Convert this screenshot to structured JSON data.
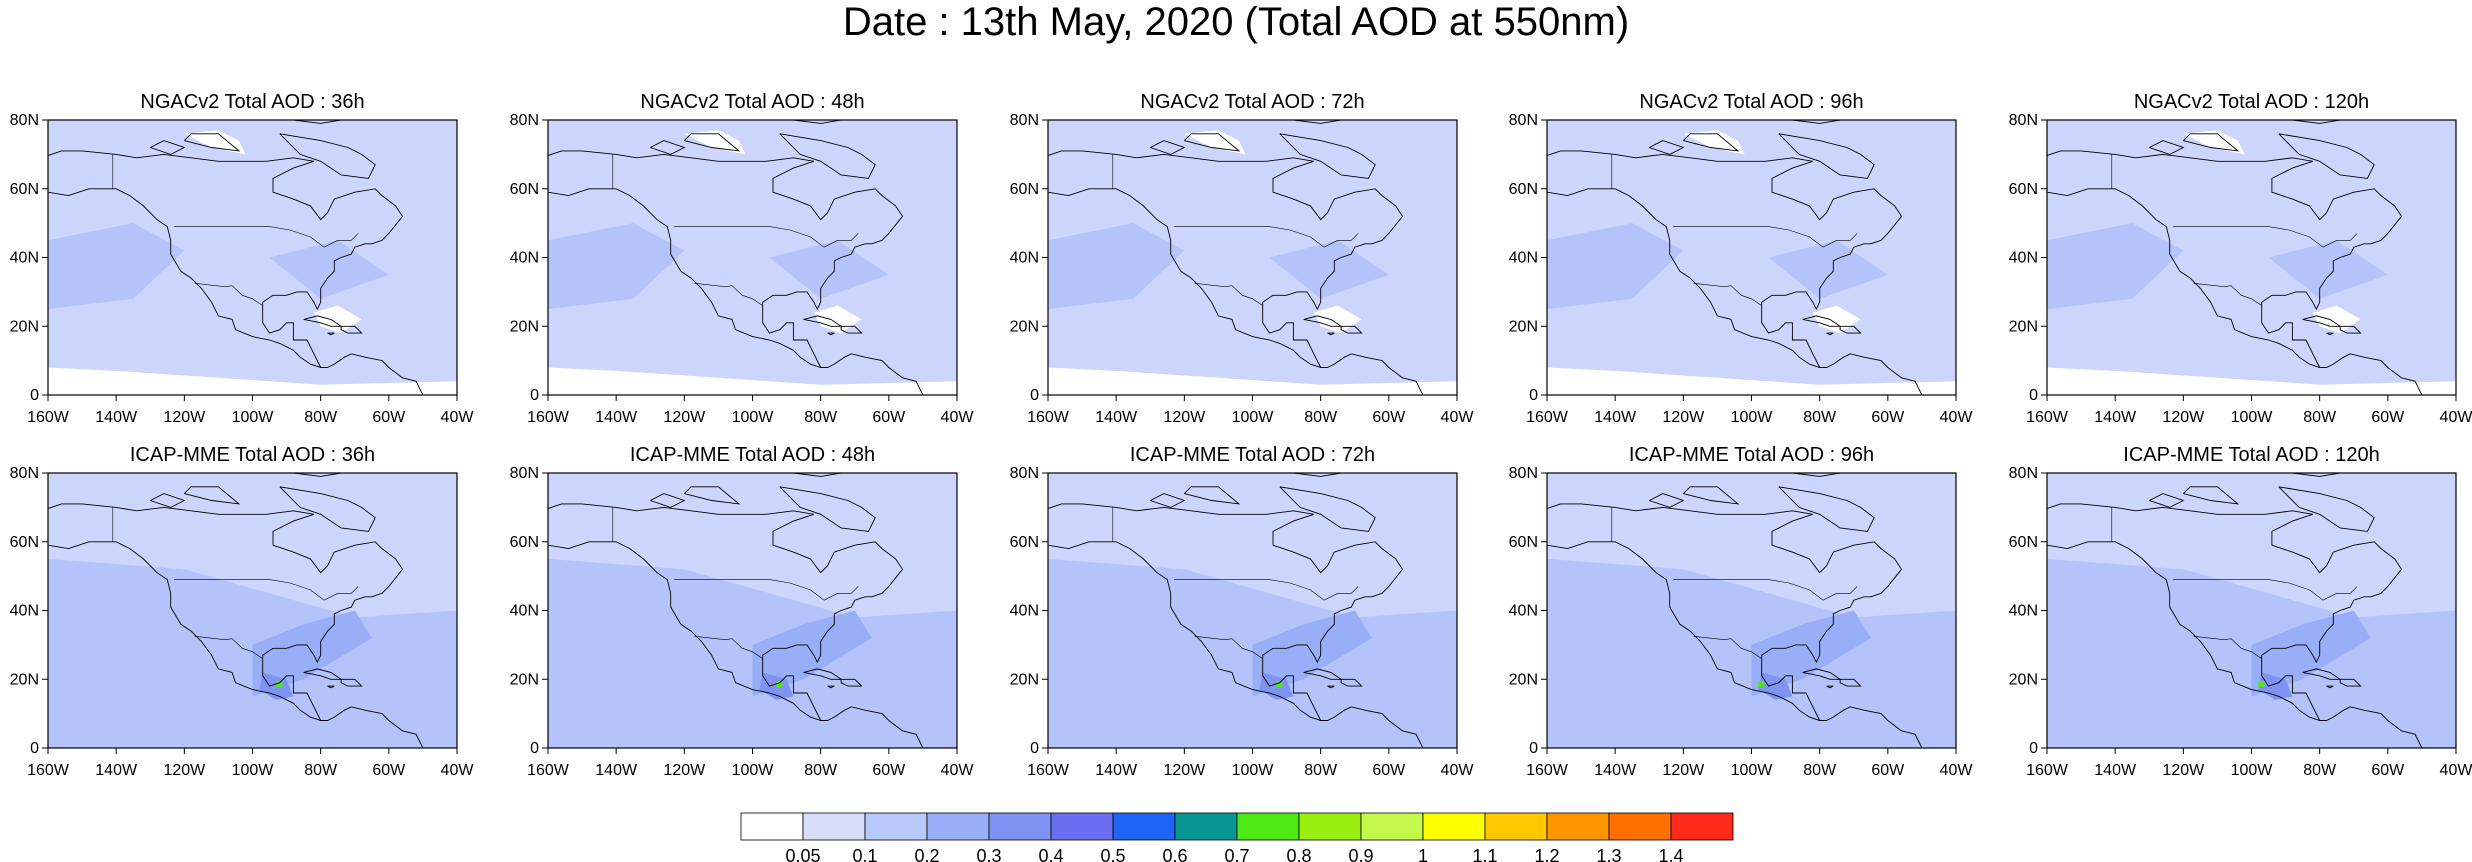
{
  "title": "Date : 13th May, 2020 (Total AOD at 550nm)",
  "axes": {
    "lon_ticks": [
      "160W",
      "140W",
      "120W",
      "100W",
      "80W",
      "60W",
      "40W"
    ],
    "lat_ticks": [
      "80N",
      "60N",
      "40N",
      "20N",
      "0"
    ],
    "lon_range": [
      -160,
      -40
    ],
    "lat_range": [
      0,
      80
    ]
  },
  "panels": [
    {
      "id": "ngac-36",
      "title": "NGACv2 Total AOD : 36h",
      "model": "NGACv2",
      "lead": "36h"
    },
    {
      "id": "ngac-48",
      "title": "NGACv2 Total AOD : 48h",
      "model": "NGACv2",
      "lead": "48h"
    },
    {
      "id": "ngac-72",
      "title": "NGACv2 Total AOD : 72h",
      "model": "NGACv2",
      "lead": "72h"
    },
    {
      "id": "ngac-96",
      "title": "NGACv2 Total AOD : 96h",
      "model": "NGACv2",
      "lead": "96h"
    },
    {
      "id": "ngac-120",
      "title": "NGACv2 Total AOD : 120h",
      "model": "NGACv2",
      "lead": "120h"
    },
    {
      "id": "icap-36",
      "title": "ICAP-MME Total AOD : 36h",
      "model": "ICAP-MME",
      "lead": "36h"
    },
    {
      "id": "icap-48",
      "title": "ICAP-MME Total AOD : 48h",
      "model": "ICAP-MME",
      "lead": "48h"
    },
    {
      "id": "icap-72",
      "title": "ICAP-MME Total AOD : 72h",
      "model": "ICAP-MME",
      "lead": "72h"
    },
    {
      "id": "icap-96",
      "title": "ICAP-MME Total AOD : 96h",
      "model": "ICAP-MME",
      "lead": "96h"
    },
    {
      "id": "icap-120",
      "title": "ICAP-MME Total AOD : 120h",
      "model": "ICAP-MME",
      "lead": "120h"
    }
  ],
  "colorbar": {
    "labels": [
      "0.05",
      "0.1",
      "0.2",
      "0.3",
      "0.4",
      "0.5",
      "0.6",
      "0.7",
      "0.8",
      "0.9",
      "1",
      "1.1",
      "1.2",
      "1.3",
      "1.4"
    ],
    "colors": [
      "#ffffff",
      "#d6defc",
      "#b8c8fa",
      "#98aef7",
      "#7f93f3",
      "#6a6ef0",
      "#1e64f5",
      "#089692",
      "#4ee817",
      "#9bef0e",
      "#c4f84a",
      "#ffff00",
      "#ffc800",
      "#ff9600",
      "#ff6e00",
      "#ff2a1a"
    ]
  },
  "colors": {
    "background_aod": "#ccd6fc",
    "moderate_aod": "#b4c4fa",
    "clean_air": "#ffffff"
  }
}
